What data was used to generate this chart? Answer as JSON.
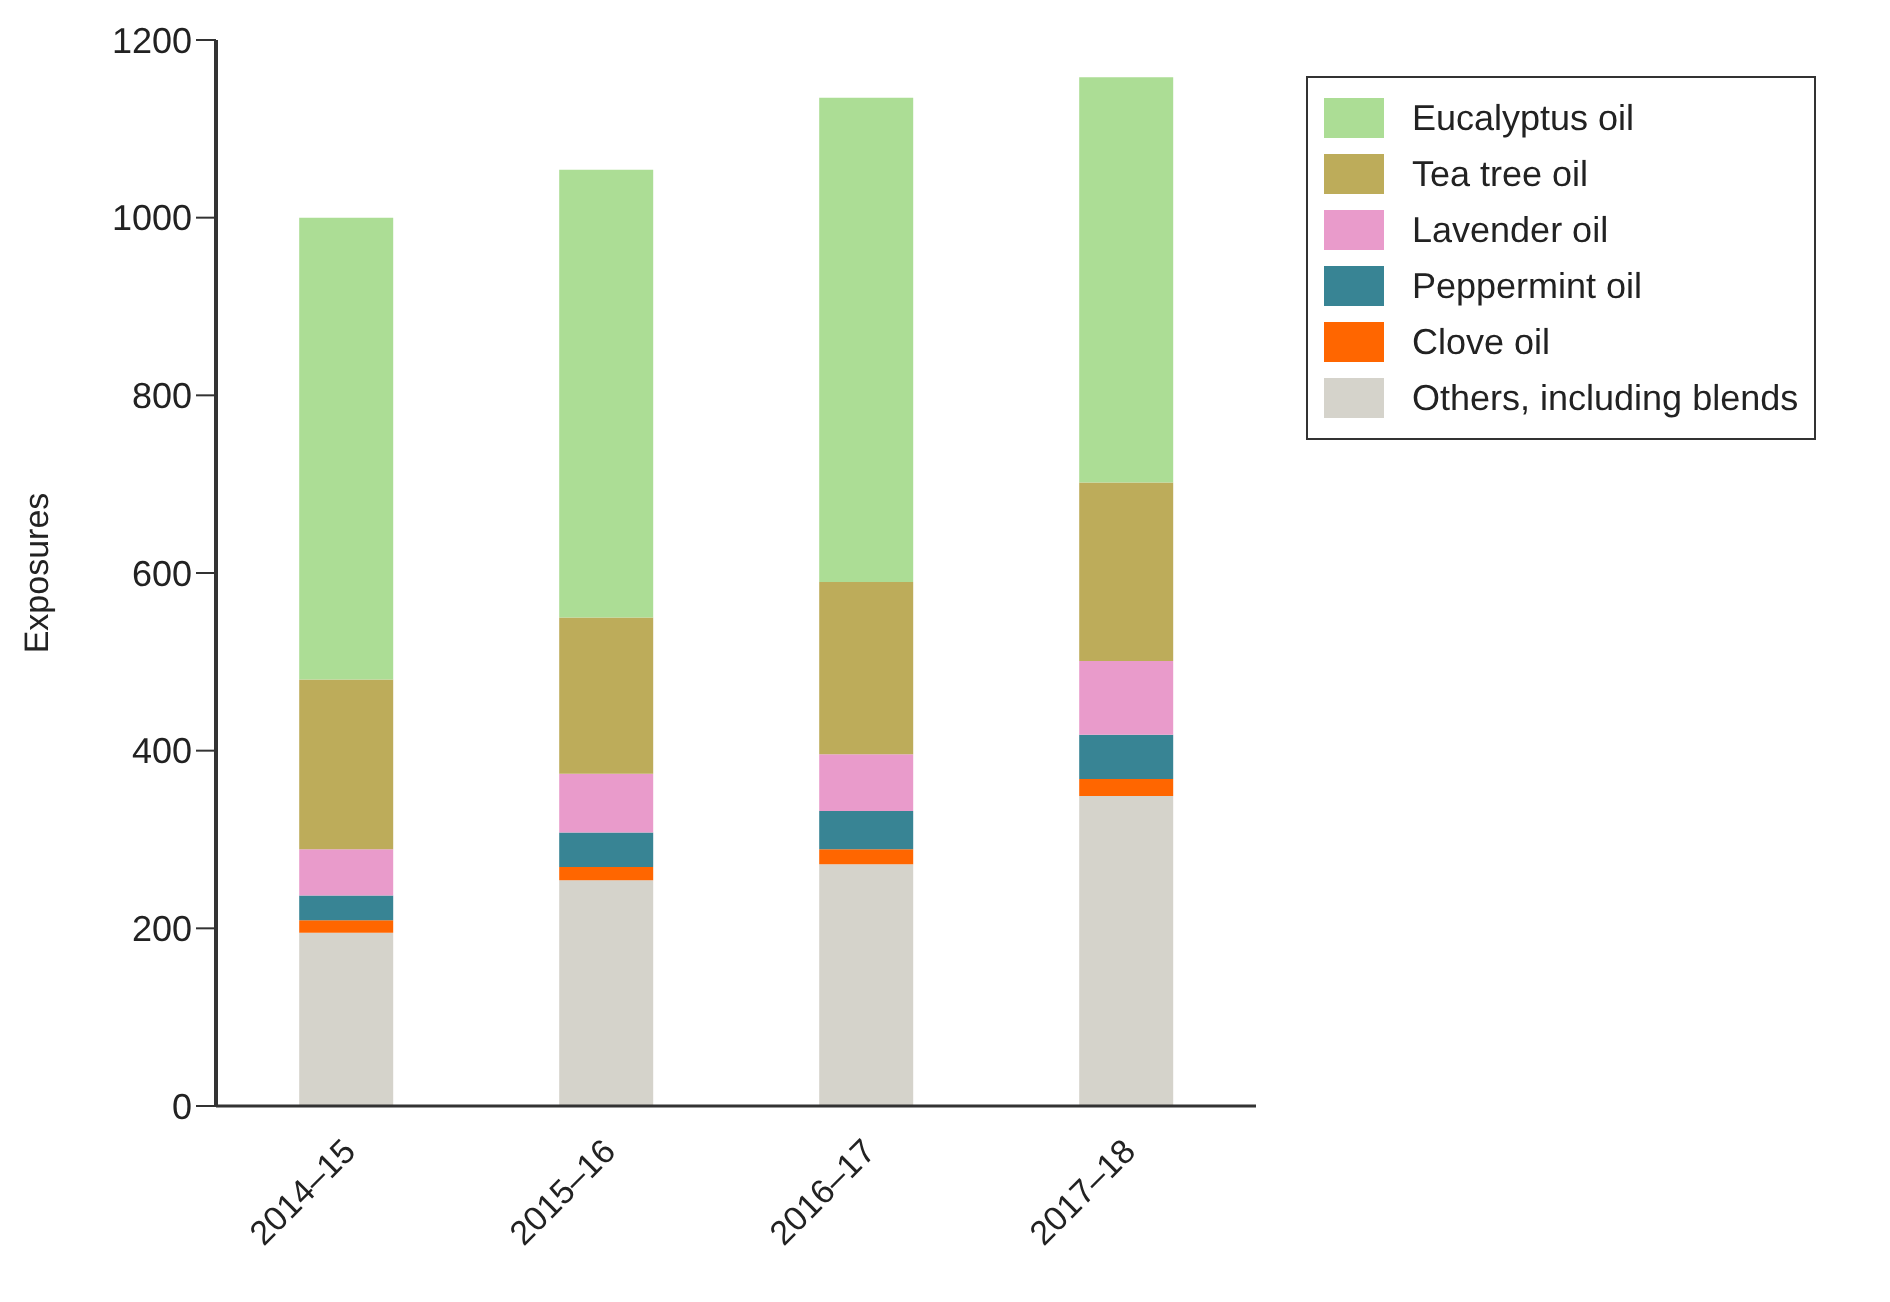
{
  "chart_data": {
    "type": "bar",
    "stacked": true,
    "ylabel": "Exposures",
    "categories": [
      "2014–15",
      "2015–16",
      "2016–17",
      "2017–18"
    ],
    "series": [
      {
        "name": "Others, including blends",
        "color": "#d5d3cb",
        "values": [
          195,
          254,
          272,
          349
        ]
      },
      {
        "name": "Clove oil",
        "color": "#ff6600",
        "values": [
          14,
          15,
          17,
          19
        ]
      },
      {
        "name": "Peppermint oil",
        "color": "#388494",
        "values": [
          28,
          39,
          43,
          50
        ]
      },
      {
        "name": "Lavender oil",
        "color": "#e99bcb",
        "values": [
          52,
          66,
          64,
          83
        ]
      },
      {
        "name": "Tea tree oil",
        "color": "#bdac5a",
        "values": [
          191,
          176,
          194,
          201
        ]
      },
      {
        "name": "Eucalyptus oil",
        "color": "#acdd95",
        "values": [
          520,
          504,
          545,
          456
        ]
      }
    ],
    "ylim": [
      0,
      1200
    ],
    "yticks": [
      0,
      200,
      400,
      600,
      800,
      1000,
      1200
    ],
    "grid": false,
    "legend": "top right"
  }
}
